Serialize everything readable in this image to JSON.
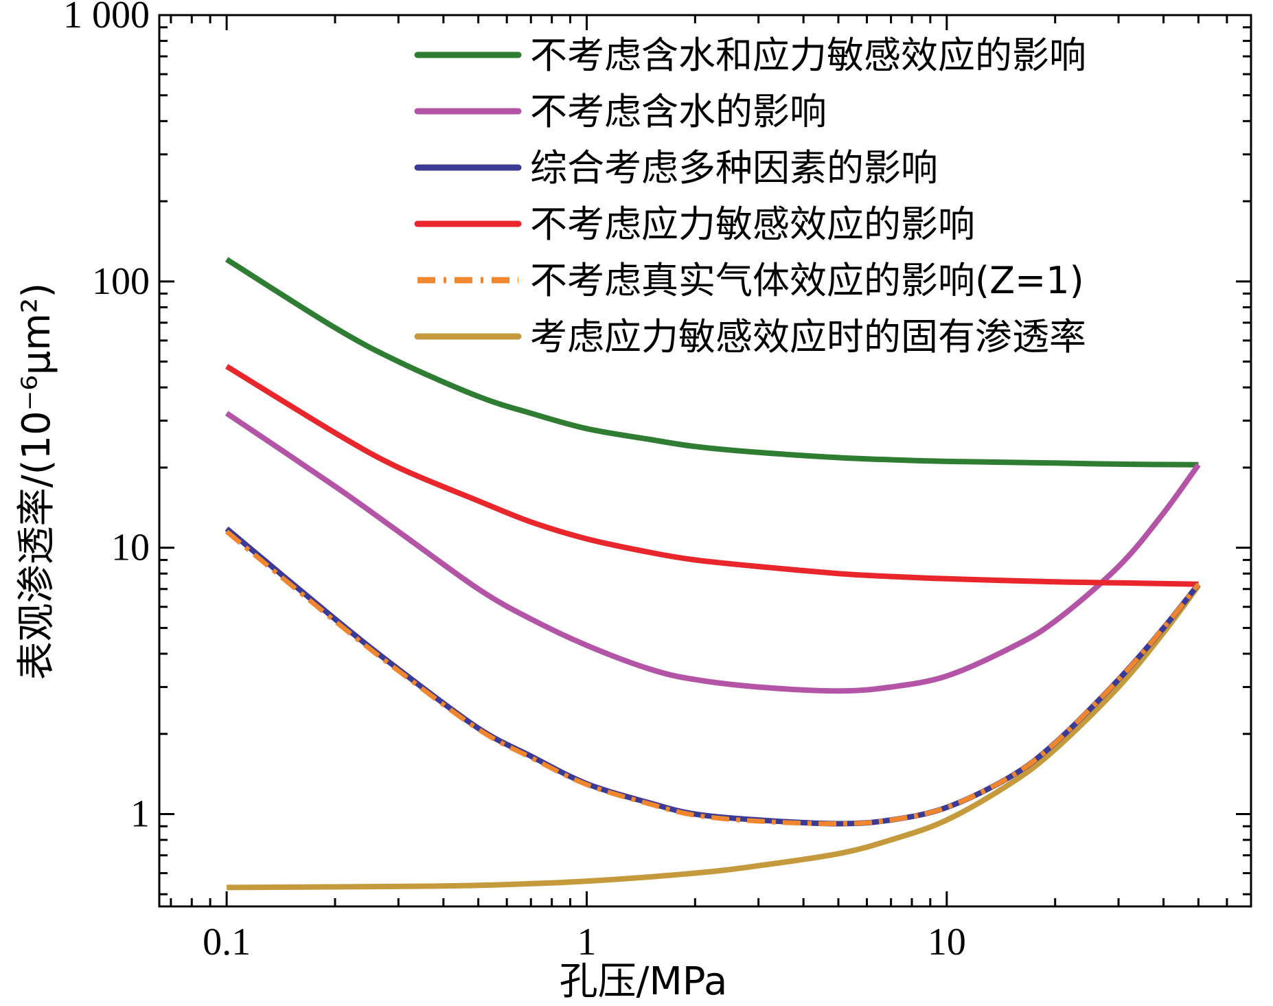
{
  "chart_data": {
    "type": "line",
    "xlabel": "孔压/MPa",
    "ylabel": "表观渗透率/(10⁻⁶μm²)",
    "x_scale": "log",
    "y_scale": "log",
    "xlim": [
      0.065,
      70
    ],
    "ylim": [
      0.45,
      1000
    ],
    "x_ticks": [
      {
        "value": 0.1,
        "label": "0.1"
      },
      {
        "value": 1,
        "label": "1"
      },
      {
        "value": 10,
        "label": "10"
      }
    ],
    "y_ticks": [
      {
        "value": 1,
        "label": "1"
      },
      {
        "value": 10,
        "label": "10"
      },
      {
        "value": 100,
        "label": "100"
      },
      {
        "value": 1000,
        "label": "1 000"
      }
    ],
    "grid": false,
    "legend_position": "top-right",
    "series": [
      {
        "name": "不考虑含水和应力敏感效应的影响",
        "color": "#2e7d32",
        "dash": "solid",
        "x": [
          0.1,
          0.2,
          0.3,
          0.5,
          0.7,
          1,
          1.5,
          2,
          3,
          5,
          7,
          10,
          20,
          30,
          50
        ],
        "y": [
          121,
          67,
          50,
          37,
          32,
          28,
          25.5,
          24,
          22.8,
          21.8,
          21.4,
          21.1,
          20.8,
          20.6,
          20.5
        ]
      },
      {
        "name": "不考虑含水的影响",
        "color": "#b354a6",
        "dash": "solid",
        "x": [
          0.1,
          0.2,
          0.3,
          0.5,
          0.7,
          1,
          1.5,
          2,
          3,
          5,
          7,
          10,
          15,
          20,
          30,
          40,
          50
        ],
        "y": [
          32,
          17,
          11.5,
          7.0,
          5.4,
          4.3,
          3.5,
          3.2,
          3.0,
          2.9,
          3.0,
          3.3,
          4.2,
          5.3,
          8.5,
          13.5,
          20.5
        ]
      },
      {
        "name": "综合考虑多种因素的影响",
        "color": "#3b3b96",
        "dash": "solid",
        "x": [
          0.1,
          0.2,
          0.3,
          0.5,
          0.7,
          1,
          1.5,
          2,
          3,
          5,
          7,
          10,
          15,
          20,
          30,
          40,
          50
        ],
        "y": [
          11.8,
          5.4,
          3.5,
          2.1,
          1.65,
          1.3,
          1.1,
          1.0,
          0.95,
          0.92,
          0.95,
          1.06,
          1.38,
          1.85,
          3.2,
          5.0,
          7.3
        ]
      },
      {
        "name": "不考虑应力敏感效应的影响",
        "color": "#e8262b",
        "dash": "solid",
        "x": [
          0.1,
          0.2,
          0.3,
          0.5,
          0.7,
          1,
          1.5,
          2,
          3,
          5,
          7,
          10,
          20,
          30,
          50
        ],
        "y": [
          48,
          27,
          20,
          15,
          12.5,
          10.8,
          9.6,
          9.0,
          8.5,
          8.0,
          7.8,
          7.65,
          7.45,
          7.38,
          7.3
        ]
      },
      {
        "name": "不考虑真实气体效应的影响(Z=1)",
        "color": "#f0862e",
        "dash": "dashdot",
        "x": [
          0.1,
          0.2,
          0.3,
          0.5,
          0.7,
          1,
          1.5,
          2,
          3,
          5,
          7,
          10,
          15,
          20,
          30,
          40,
          50
        ],
        "y": [
          11.5,
          5.3,
          3.45,
          2.08,
          1.63,
          1.29,
          1.09,
          0.99,
          0.94,
          0.92,
          0.95,
          1.06,
          1.38,
          1.85,
          3.2,
          5.0,
          7.3
        ]
      },
      {
        "name": "考虑应力敏感效应时的固有渗透率",
        "color": "#c49a3c",
        "dash": "solid",
        "x": [
          0.1,
          0.3,
          0.5,
          1,
          2,
          3,
          5,
          7,
          10,
          15,
          20,
          30,
          40,
          50
        ],
        "y": [
          0.53,
          0.535,
          0.54,
          0.56,
          0.6,
          0.64,
          0.71,
          0.8,
          0.95,
          1.3,
          1.75,
          3.0,
          4.8,
          7.2
        ]
      }
    ]
  }
}
